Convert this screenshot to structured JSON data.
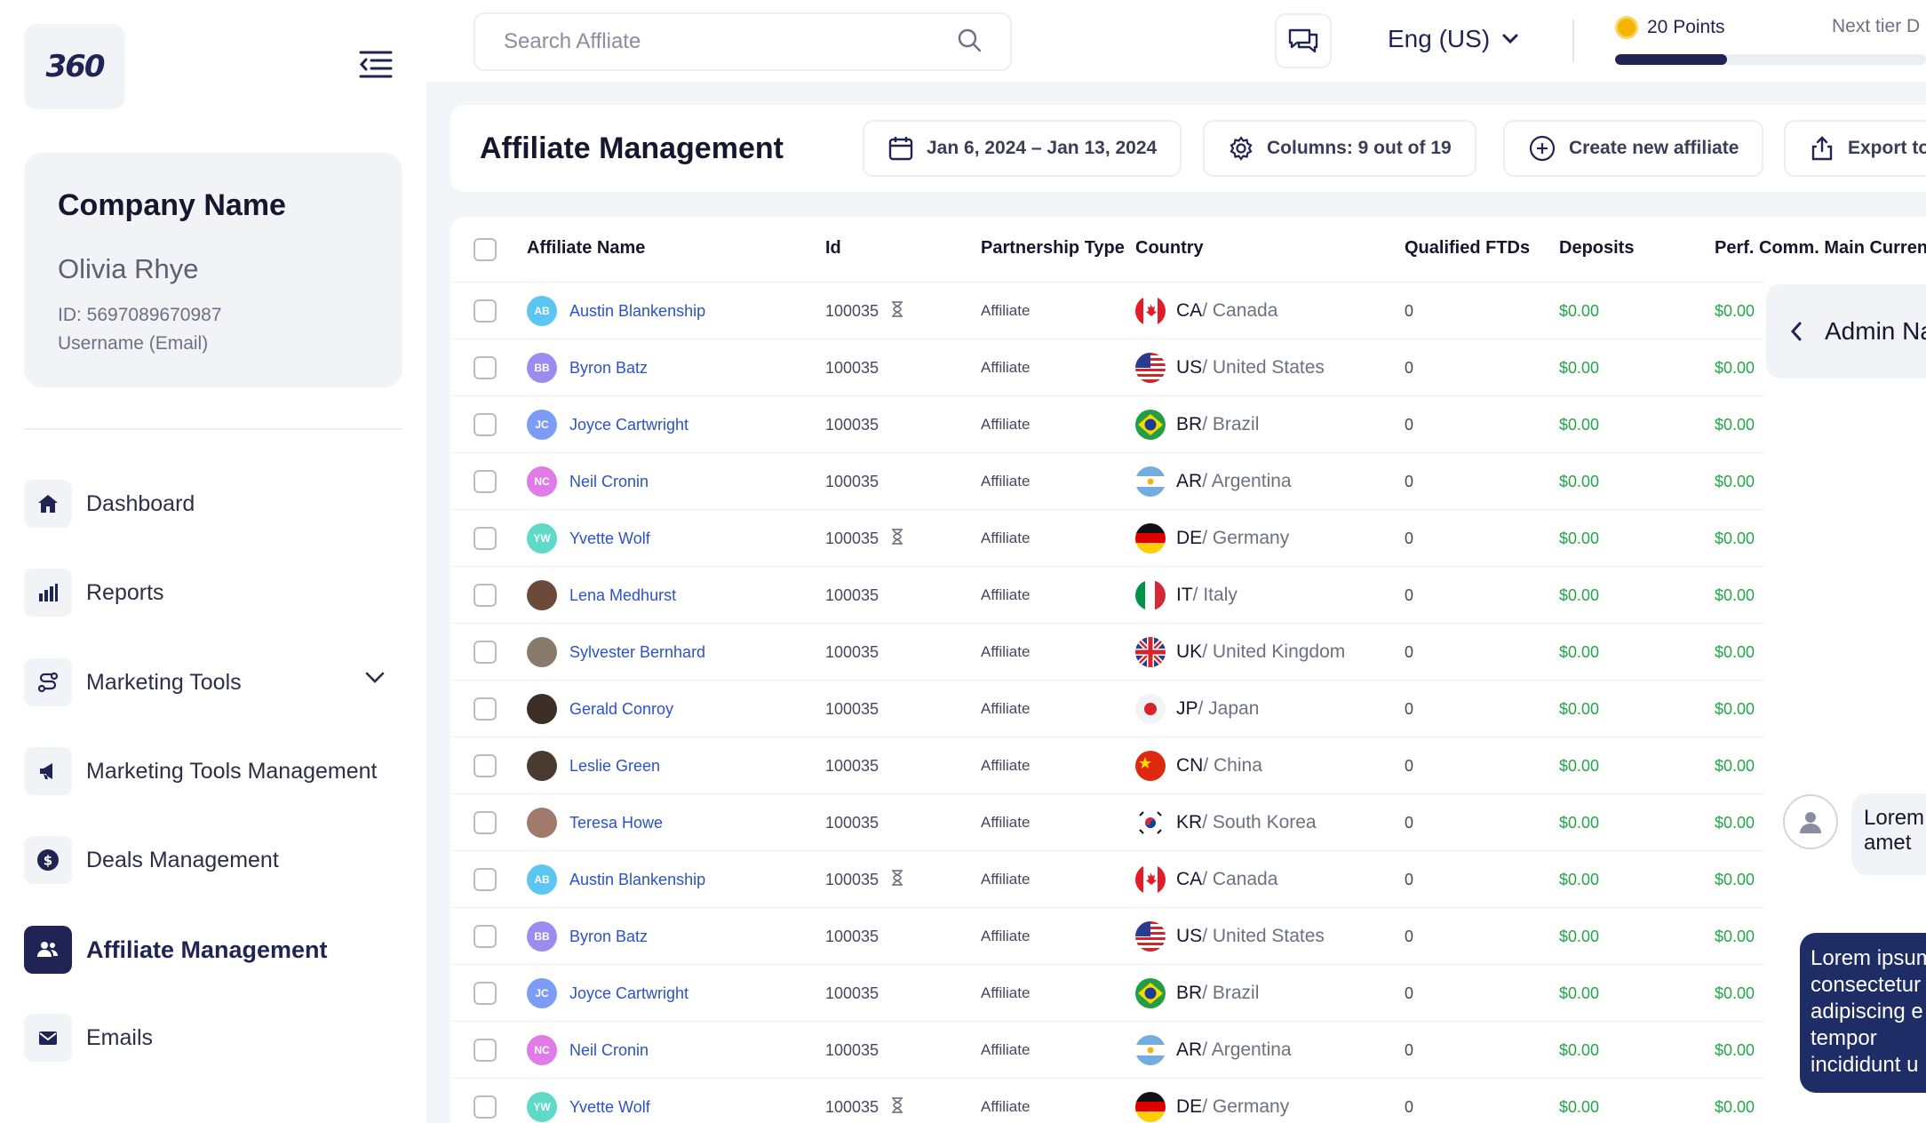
{
  "brand": {
    "logo_text": "360"
  },
  "profile": {
    "company": "Company Name",
    "user": "Olivia Rhye",
    "id_line": "ID: 5697089670987",
    "username_line": "Username (Email)"
  },
  "nav": [
    {
      "label": "Dashboard",
      "icon": "home-icon"
    },
    {
      "label": "Reports",
      "icon": "bar-chart-icon"
    },
    {
      "label": "Marketing Tools",
      "icon": "route-icon",
      "has_dropdown": true
    },
    {
      "label": "Marketing Tools Management",
      "icon": "megaphone-icon"
    },
    {
      "label": "Deals Management",
      "icon": "dollar-icon"
    },
    {
      "label": "Affiliate Management",
      "icon": "users-icon",
      "active": true
    },
    {
      "label": "Emails",
      "icon": "mail-icon"
    }
  ],
  "topbar": {
    "search_placeholder": "Search Affliate",
    "language": "Eng (US)",
    "points": "20 Points",
    "next_tier": "Next tier D",
    "progress_fraction": 0.36
  },
  "header": {
    "title": "Affiliate Management",
    "date_range": "Jan 6, 2024 – Jan 13, 2024",
    "columns": "Columns: 9 out of 19",
    "create": "Create new affiliate",
    "export": "Export to"
  },
  "table": {
    "columns": [
      "Affiliate Name",
      "Id",
      "Partnership Type",
      "Country",
      "Qualified FTDs",
      "Deposits",
      "Perf. Comm. Main Currency"
    ],
    "rows": [
      {
        "initials": "AB",
        "avatar_color": "#5cc6f2",
        "name": "Austin Blankenship",
        "id": "100035",
        "pending": true,
        "type": "Affiliate",
        "flag": "CA",
        "code": "CA",
        "country": "/ Canada",
        "ftds": "0",
        "deposits": "$0.00",
        "comm": "$0.00"
      },
      {
        "initials": "BB",
        "avatar_color": "#9b8cf0",
        "name": "Byron Batz",
        "id": "100035",
        "pending": false,
        "type": "Affiliate",
        "flag": "US",
        "code": "US",
        "country": "/ United States",
        "ftds": "0",
        "deposits": "$0.00",
        "comm": "$0.00"
      },
      {
        "initials": "JC",
        "avatar_color": "#7c9cf5",
        "name": "Joyce Cartwright",
        "id": "100035",
        "pending": false,
        "type": "Affiliate",
        "flag": "BR",
        "code": "BR",
        "country": "/ Brazil",
        "ftds": "0",
        "deposits": "$0.00",
        "comm": "$0.00"
      },
      {
        "initials": "NC",
        "avatar_color": "#e07be8",
        "name": "Neil Cronin",
        "id": "100035",
        "pending": false,
        "type": "Affiliate",
        "flag": "AR",
        "code": "AR",
        "country": "/ Argentina",
        "ftds": "0",
        "deposits": "$0.00",
        "comm": "$0.00"
      },
      {
        "initials": "YW",
        "avatar_color": "#5fd9c8",
        "name": "Yvette Wolf",
        "id": "100035",
        "pending": true,
        "type": "Affiliate",
        "flag": "DE",
        "code": "DE",
        "country": "/ Germany",
        "ftds": "0",
        "deposits": "$0.00",
        "comm": "$0.00"
      },
      {
        "initials": "",
        "avatar_color": "#6b4a3a",
        "name": "Lena Medhurst",
        "id": "100035",
        "pending": false,
        "type": "Affiliate",
        "flag": "IT",
        "code": "IT",
        "country": "/ Italy",
        "ftds": "0",
        "deposits": "$0.00",
        "comm": "$0.00"
      },
      {
        "initials": "",
        "avatar_color": "#8a7a6a",
        "name": "Sylvester Bernhard",
        "id": "100035",
        "pending": false,
        "type": "Affiliate",
        "flag": "UK",
        "code": "UK",
        "country": "/ United Kingdom",
        "ftds": "0",
        "deposits": "$0.00",
        "comm": "$0.00"
      },
      {
        "initials": "",
        "avatar_color": "#3d2f27",
        "name": "Gerald Conroy",
        "id": "100035",
        "pending": false,
        "type": "Affiliate",
        "flag": "JP",
        "code": "JP",
        "country": "/ Japan",
        "ftds": "0",
        "deposits": "$0.00",
        "comm": "$0.00"
      },
      {
        "initials": "",
        "avatar_color": "#4a3a30",
        "name": "Leslie Green",
        "id": "100035",
        "pending": false,
        "type": "Affiliate",
        "flag": "CN",
        "code": "CN",
        "country": "/ China",
        "ftds": "0",
        "deposits": "$0.00",
        "comm": "$0.00"
      },
      {
        "initials": "",
        "avatar_color": "#a07a6a",
        "name": "Teresa Howe",
        "id": "100035",
        "pending": false,
        "type": "Affiliate",
        "flag": "KR",
        "code": "KR",
        "country": "/ South Korea",
        "ftds": "0",
        "deposits": "$0.00",
        "comm": "$0.00"
      },
      {
        "initials": "AB",
        "avatar_color": "#5cc6f2",
        "name": "Austin Blankenship",
        "id": "100035",
        "pending": true,
        "type": "Affiliate",
        "flag": "CA",
        "code": "CA",
        "country": "/ Canada",
        "ftds": "0",
        "deposits": "$0.00",
        "comm": "$0.00"
      },
      {
        "initials": "BB",
        "avatar_color": "#9b8cf0",
        "name": "Byron Batz",
        "id": "100035",
        "pending": false,
        "type": "Affiliate",
        "flag": "US",
        "code": "US",
        "country": "/ United States",
        "ftds": "0",
        "deposits": "$0.00",
        "comm": "$0.00"
      },
      {
        "initials": "JC",
        "avatar_color": "#7c9cf5",
        "name": "Joyce Cartwright",
        "id": "100035",
        "pending": false,
        "type": "Affiliate",
        "flag": "BR",
        "code": "BR",
        "country": "/ Brazil",
        "ftds": "0",
        "deposits": "$0.00",
        "comm": "$0.00"
      },
      {
        "initials": "NC",
        "avatar_color": "#e07be8",
        "name": "Neil Cronin",
        "id": "100035",
        "pending": false,
        "type": "Affiliate",
        "flag": "AR",
        "code": "AR",
        "country": "/ Argentina",
        "ftds": "0",
        "deposits": "$0.00",
        "comm": "$0.00"
      },
      {
        "initials": "YW",
        "avatar_color": "#5fd9c8",
        "name": "Yvette Wolf",
        "id": "100035",
        "pending": true,
        "type": "Affiliate",
        "flag": "DE",
        "code": "DE",
        "country": "/ Germany",
        "ftds": "0",
        "deposits": "$0.00",
        "comm": "$0.00"
      }
    ]
  },
  "side_panel": {
    "admin_label": "Admin Na",
    "chat_gray": "Lorem\namet",
    "chat_navy": "Lorem ipsum\nconsectetur\nadipiscing e\ntempor\nincididunt u"
  },
  "colors": {
    "brand_navy": "#1f2455",
    "link_blue": "#2d52c7",
    "money_green": "#22a447",
    "bg_gray": "#f4f5f8"
  }
}
